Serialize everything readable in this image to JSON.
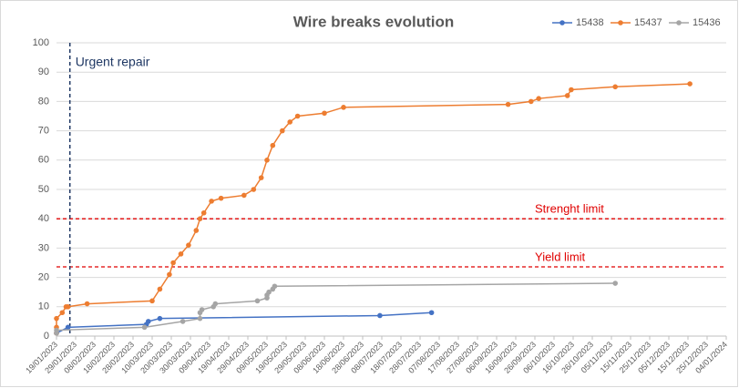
{
  "chart_data": {
    "type": "line",
    "title": "Wire breaks evolution",
    "xlim": [
      "2023-01-19",
      "2024-01-04"
    ],
    "xticks": [
      {
        "value": "2023-01-19",
        "label": "19/01/2023"
      },
      {
        "value": "2023-01-29",
        "label": "29/01/2023"
      },
      {
        "value": "2023-02-08",
        "label": "08/02/2023"
      },
      {
        "value": "2023-02-18",
        "label": "18/02/2023"
      },
      {
        "value": "2023-02-28",
        "label": "28/02/2023"
      },
      {
        "value": "2023-03-10",
        "label": "10/03/2023"
      },
      {
        "value": "2023-03-20",
        "label": "20/03/2023"
      },
      {
        "value": "2023-03-30",
        "label": "30/03/2023"
      },
      {
        "value": "2023-04-09",
        "label": "09/04/2023"
      },
      {
        "value": "2023-04-19",
        "label": "19/04/2023"
      },
      {
        "value": "2023-04-29",
        "label": "29/04/2023"
      },
      {
        "value": "2023-05-09",
        "label": "09/05/2023"
      },
      {
        "value": "2023-05-19",
        "label": "19/05/2023"
      },
      {
        "value": "2023-05-29",
        "label": "29/05/2023"
      },
      {
        "value": "2023-06-08",
        "label": "08/06/2023"
      },
      {
        "value": "2023-06-18",
        "label": "18/06/2023"
      },
      {
        "value": "2023-06-28",
        "label": "28/06/2023"
      },
      {
        "value": "2023-07-08",
        "label": "08/07/2023"
      },
      {
        "value": "2023-07-18",
        "label": "18/07/2023"
      },
      {
        "value": "2023-07-28",
        "label": "28/07/2023"
      },
      {
        "value": "2023-08-07",
        "label": "07/08/2023"
      },
      {
        "value": "2023-08-17",
        "label": "17/08/2023"
      },
      {
        "value": "2023-08-27",
        "label": "27/08/2023"
      },
      {
        "value": "2023-09-06",
        "label": "06/09/2023"
      },
      {
        "value": "2023-09-16",
        "label": "16/09/2023"
      },
      {
        "value": "2023-09-26",
        "label": "26/09/2023"
      },
      {
        "value": "2023-10-06",
        "label": "06/10/2023"
      },
      {
        "value": "2023-10-16",
        "label": "16/10/2023"
      },
      {
        "value": "2023-10-26",
        "label": "26/10/2023"
      },
      {
        "value": "2023-11-05",
        "label": "05/11/2023"
      },
      {
        "value": "2023-11-15",
        "label": "15/11/2023"
      },
      {
        "value": "2023-11-25",
        "label": "25/11/2023"
      },
      {
        "value": "2023-12-05",
        "label": "05/12/2023"
      },
      {
        "value": "2023-12-15",
        "label": "15/12/2023"
      },
      {
        "value": "2023-12-25",
        "label": "25/12/2023"
      },
      {
        "value": "2024-01-04",
        "label": "04/01/2024"
      }
    ],
    "ylim": [
      0,
      100
    ],
    "yticks": [
      0,
      10,
      20,
      30,
      40,
      50,
      60,
      70,
      80,
      90,
      100
    ],
    "grid": true,
    "legend": "top-right",
    "series": [
      {
        "name": "15438",
        "color": "#4472c4",
        "x": [
          "2023-01-19",
          "2023-01-25",
          "2023-03-07",
          "2023-03-08",
          "2023-03-14",
          "2023-07-07",
          "2023-08-03"
        ],
        "values": [
          1,
          3,
          4,
          5,
          6,
          7,
          8
        ]
      },
      {
        "name": "15437",
        "color": "#ed7d31",
        "x": [
          "2023-01-19",
          "2023-01-19",
          "2023-01-19",
          "2023-01-22",
          "2023-01-24",
          "2023-01-25",
          "2023-02-04",
          "2023-03-10",
          "2023-03-14",
          "2023-03-19",
          "2023-03-21",
          "2023-03-25",
          "2023-03-29",
          "2023-04-02",
          "2023-04-04",
          "2023-04-06",
          "2023-04-10",
          "2023-04-15",
          "2023-04-27",
          "2023-05-02",
          "2023-05-06",
          "2023-05-09",
          "2023-05-12",
          "2023-05-17",
          "2023-05-21",
          "2023-05-25",
          "2023-06-08",
          "2023-06-18",
          "2023-09-12",
          "2023-09-24",
          "2023-09-28",
          "2023-10-13",
          "2023-10-15",
          "2023-11-07",
          "2023-12-16"
        ],
        "values": [
          1,
          3,
          6,
          8,
          10,
          10,
          11,
          12,
          16,
          21,
          25,
          28,
          31,
          36,
          40,
          42,
          46,
          47,
          48,
          50,
          54,
          60,
          65,
          70,
          73,
          75,
          76,
          78,
          79,
          80,
          81,
          82,
          84,
          85,
          86
        ]
      },
      {
        "name": "15436",
        "color": "#a5a5a5",
        "x": [
          "2023-01-19",
          "2023-01-19",
          "2023-03-06",
          "2023-03-26",
          "2023-04-04",
          "2023-04-04",
          "2023-04-05",
          "2023-04-11",
          "2023-04-12",
          "2023-05-04",
          "2023-05-09",
          "2023-05-09",
          "2023-05-10",
          "2023-05-12",
          "2023-05-13",
          "2023-11-07"
        ],
        "values": [
          1,
          2,
          3,
          5,
          6,
          8,
          9,
          10,
          11,
          12,
          13,
          14,
          15,
          16,
          17,
          18
        ]
      }
    ],
    "vertical_lines": [
      {
        "label": "Urgent repair",
        "x": "2023-01-26",
        "color": "#1f3864"
      }
    ],
    "reference_lines": [
      {
        "label": "Strenght limit",
        "y": 40,
        "color": "#e00000"
      },
      {
        "label": "Yield limit",
        "y": 23.6,
        "color": "#e00000"
      }
    ]
  }
}
